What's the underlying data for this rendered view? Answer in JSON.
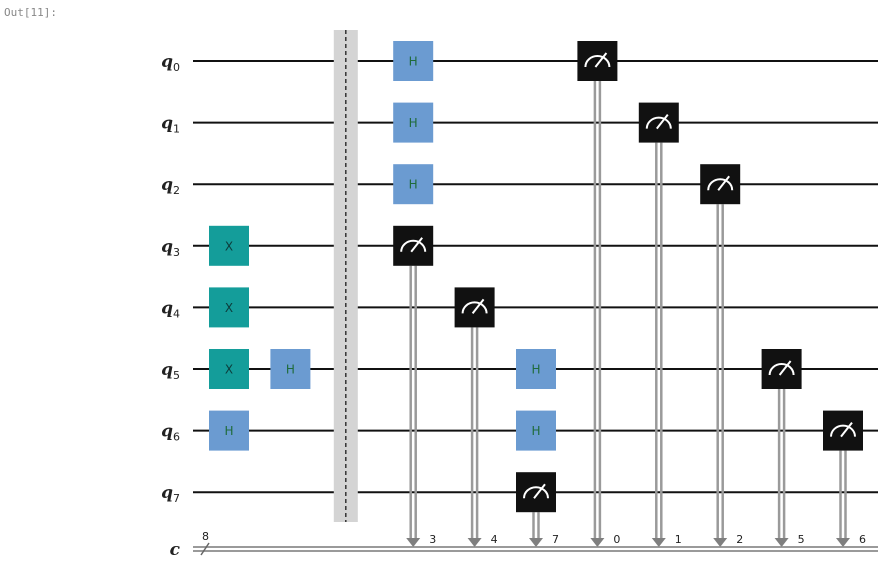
{
  "output_prompt": "Out[11]:",
  "colors": {
    "wire": "#111111",
    "classical_wire": "#9a9a9a",
    "h_gate": "#6b9bd1",
    "h_text": "#1f6b3a",
    "x_gate": "#149d9a",
    "x_text": "#0d3b3a",
    "measure": "#111111",
    "measure_arc": "#ffffff",
    "barrier_band": "#d4d4d4",
    "barrier_line": "#333333"
  },
  "qubits": [
    {
      "base": "q",
      "index": "0"
    },
    {
      "base": "q",
      "index": "1"
    },
    {
      "base": "q",
      "index": "2"
    },
    {
      "base": "q",
      "index": "3"
    },
    {
      "base": "q",
      "index": "4"
    },
    {
      "base": "q",
      "index": "5"
    },
    {
      "base": "q",
      "index": "6"
    },
    {
      "base": "q",
      "index": "7"
    }
  ],
  "classical_register": {
    "label": "c",
    "width": "8"
  },
  "gates": [
    {
      "type": "x",
      "qubit": 3,
      "col": 0,
      "label": "X"
    },
    {
      "type": "x",
      "qubit": 4,
      "col": 0,
      "label": "X"
    },
    {
      "type": "x",
      "qubit": 5,
      "col": 0,
      "label": "X"
    },
    {
      "type": "h",
      "qubit": 6,
      "col": 0,
      "label": "H"
    },
    {
      "type": "h",
      "qubit": 5,
      "col": 1,
      "label": "H"
    },
    {
      "type": "h",
      "qubit": 0,
      "col": 3,
      "label": "H"
    },
    {
      "type": "h",
      "qubit": 1,
      "col": 3,
      "label": "H"
    },
    {
      "type": "h",
      "qubit": 2,
      "col": 3,
      "label": "H"
    },
    {
      "type": "h",
      "qubit": 5,
      "col": 5,
      "label": "H"
    },
    {
      "type": "h",
      "qubit": 6,
      "col": 5,
      "label": "H"
    }
  ],
  "barrier": {
    "col": 2
  },
  "measurements": [
    {
      "qubit": 3,
      "col": 3,
      "cbit": "3"
    },
    {
      "qubit": 4,
      "col": 4,
      "cbit": "4"
    },
    {
      "qubit": 7,
      "col": 5,
      "cbit": "7"
    },
    {
      "qubit": 0,
      "col": 6,
      "cbit": "0"
    },
    {
      "qubit": 1,
      "col": 7,
      "cbit": "1"
    },
    {
      "qubit": 2,
      "col": 8,
      "cbit": "2"
    },
    {
      "qubit": 5,
      "col": 9,
      "cbit": "5"
    },
    {
      "qubit": 6,
      "col": 10,
      "cbit": "6"
    }
  ]
}
